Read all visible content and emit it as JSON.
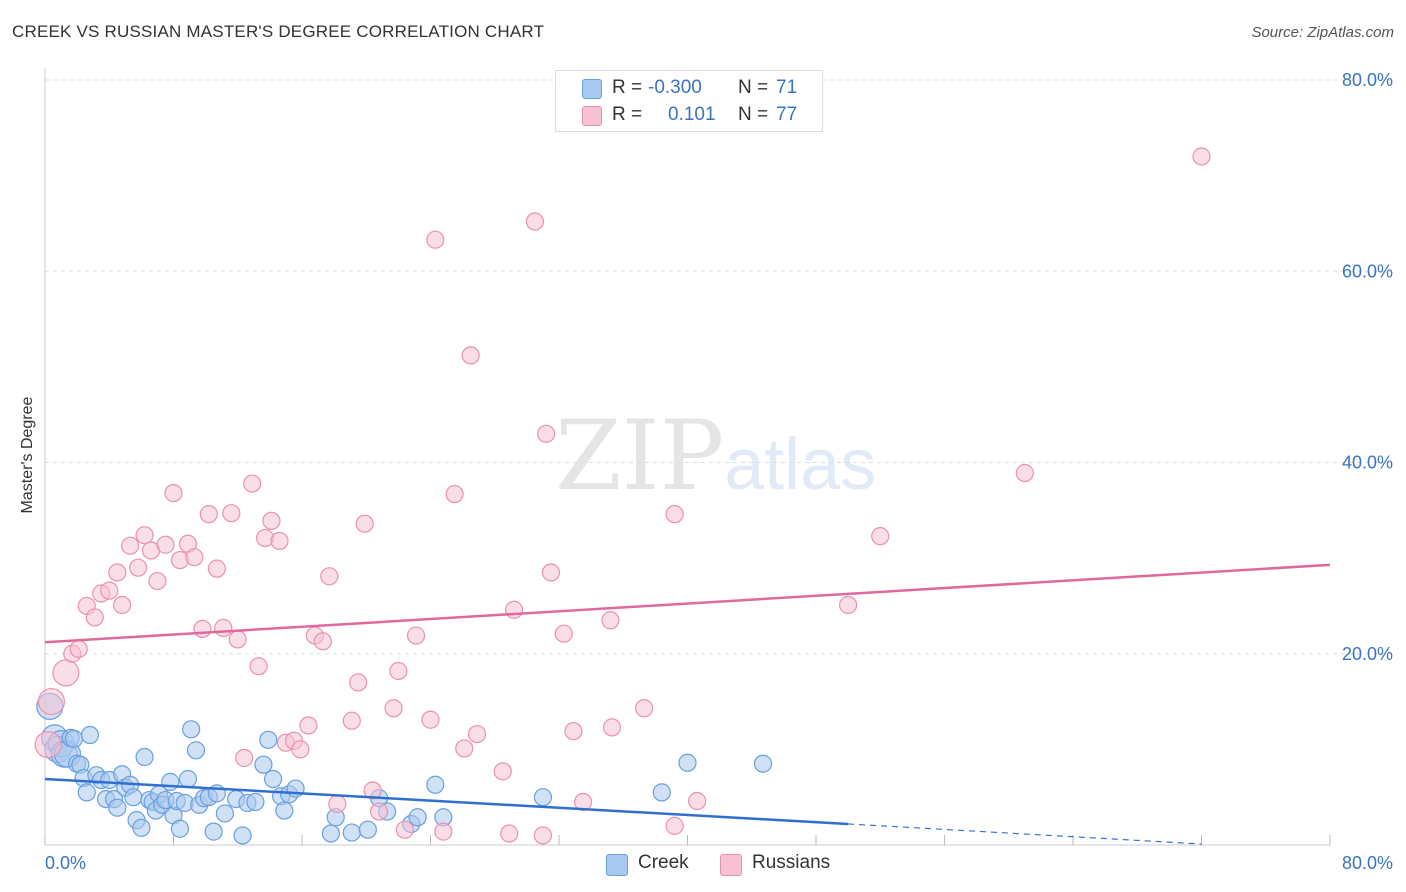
{
  "header": {
    "title": "CREEK VS RUSSIAN MASTER'S DEGREE CORRELATION CHART",
    "source": "Source: ZipAtlas.com"
  },
  "legend": {
    "r_label": "R =",
    "n_label": "N =",
    "creek": {
      "r": "-0.300",
      "n": "71"
    },
    "russians": {
      "r": "0.101",
      "n": "77"
    }
  },
  "watermark": {
    "zip": "ZIP",
    "atlas": "atlas"
  },
  "colors": {
    "creek_fill": "#a9c8ef",
    "creek_stroke": "#6a9fe0",
    "creek_line": "#2f6fcf",
    "russians_fill": "#f6c2d3",
    "russians_stroke": "#eb91ae",
    "russians_line": "#e0699a",
    "axis_text": "#3a74c4"
  },
  "chart_data": {
    "type": "scatter",
    "title": "CREEK VS RUSSIAN MASTER'S DEGREE CORRELATION CHART",
    "xlabel": "",
    "ylabel": "Master's Degree",
    "xlim": [
      0,
      80
    ],
    "ylim": [
      0,
      80
    ],
    "x_tick_labels": [
      "0.0%",
      "80.0%"
    ],
    "y_tick_labels": [
      "20.0%",
      "40.0%",
      "60.0%",
      "80.0%"
    ],
    "y_ticks": [
      20,
      40,
      60,
      80
    ],
    "grid": true,
    "legend_position": "top-center",
    "series": [
      {
        "name": "Creek",
        "r": -0.3,
        "n": 71,
        "trend": {
          "x0": 0,
          "y0": 6.9,
          "x1": 50,
          "y1": 2.2,
          "dashed_to": 72,
          "dashed_y": 0.1
        },
        "points": [
          [
            0.3,
            14.5
          ],
          [
            0.6,
            11.2
          ],
          [
            0.8,
            10.0
          ],
          [
            1.0,
            10.6
          ],
          [
            1.2,
            9.5
          ],
          [
            1.4,
            9.5
          ],
          [
            1.6,
            11.2
          ],
          [
            1.8,
            11.1
          ],
          [
            2.0,
            8.5
          ],
          [
            2.2,
            8.4
          ],
          [
            2.4,
            7.0
          ],
          [
            2.6,
            5.5
          ],
          [
            2.8,
            11.5
          ],
          [
            3.2,
            7.3
          ],
          [
            3.5,
            6.8
          ],
          [
            3.8,
            4.8
          ],
          [
            4.0,
            6.8
          ],
          [
            4.3,
            4.8
          ],
          [
            4.5,
            3.9
          ],
          [
            4.8,
            7.4
          ],
          [
            5.0,
            6.0
          ],
          [
            5.3,
            6.3
          ],
          [
            5.5,
            5.0
          ],
          [
            5.7,
            2.6
          ],
          [
            6.0,
            1.8
          ],
          [
            6.2,
            9.2
          ],
          [
            6.5,
            4.7
          ],
          [
            6.7,
            4.5
          ],
          [
            6.9,
            3.6
          ],
          [
            7.1,
            5.3
          ],
          [
            7.3,
            4.2
          ],
          [
            7.5,
            4.7
          ],
          [
            7.8,
            6.6
          ],
          [
            8.0,
            3.1
          ],
          [
            8.2,
            4.6
          ],
          [
            8.4,
            1.7
          ],
          [
            8.7,
            4.4
          ],
          [
            8.9,
            6.9
          ],
          [
            9.1,
            12.1
          ],
          [
            9.4,
            9.9
          ],
          [
            9.6,
            4.2
          ],
          [
            9.9,
            4.9
          ],
          [
            10.2,
            5.0
          ],
          [
            10.5,
            1.4
          ],
          [
            10.7,
            5.4
          ],
          [
            11.2,
            3.3
          ],
          [
            11.9,
            4.8
          ],
          [
            12.3,
            1.0
          ],
          [
            12.6,
            4.4
          ],
          [
            13.1,
            4.5
          ],
          [
            13.6,
            8.4
          ],
          [
            13.9,
            11.0
          ],
          [
            14.2,
            6.9
          ],
          [
            14.7,
            5.1
          ],
          [
            14.9,
            3.6
          ],
          [
            15.2,
            5.3
          ],
          [
            15.6,
            5.9
          ],
          [
            17.8,
            1.2
          ],
          [
            18.1,
            2.9
          ],
          [
            19.1,
            1.3
          ],
          [
            20.1,
            1.6
          ],
          [
            20.8,
            4.9
          ],
          [
            21.3,
            3.5
          ],
          [
            22.8,
            2.2
          ],
          [
            23.2,
            2.9
          ],
          [
            24.3,
            6.3
          ],
          [
            24.8,
            2.9
          ],
          [
            31.0,
            5.0
          ],
          [
            38.4,
            5.5
          ],
          [
            40.0,
            8.6
          ],
          [
            44.7,
            8.5
          ]
        ]
      },
      {
        "name": "Russians",
        "r": 0.101,
        "n": 77,
        "trend": {
          "x0": 0,
          "y0": 21.2,
          "x1": 80,
          "y1": 29.3
        },
        "points": [
          [
            0.2,
            10.5
          ],
          [
            0.4,
            15.0
          ],
          [
            1.3,
            18.0
          ],
          [
            1.7,
            20.0
          ],
          [
            2.1,
            20.5
          ],
          [
            2.6,
            25.0
          ],
          [
            3.1,
            23.8
          ],
          [
            3.5,
            26.3
          ],
          [
            4.0,
            26.6
          ],
          [
            4.5,
            28.5
          ],
          [
            4.8,
            25.1
          ],
          [
            5.3,
            31.3
          ],
          [
            5.8,
            29.0
          ],
          [
            6.2,
            32.4
          ],
          [
            6.6,
            30.8
          ],
          [
            7.0,
            27.6
          ],
          [
            7.5,
            31.4
          ],
          [
            8.0,
            36.8
          ],
          [
            8.4,
            29.8
          ],
          [
            8.9,
            31.5
          ],
          [
            9.3,
            30.1
          ],
          [
            9.8,
            22.6
          ],
          [
            10.2,
            34.6
          ],
          [
            10.7,
            28.9
          ],
          [
            11.1,
            22.7
          ],
          [
            11.6,
            34.7
          ],
          [
            12.0,
            21.5
          ],
          [
            12.4,
            9.1
          ],
          [
            12.9,
            37.8
          ],
          [
            13.3,
            18.7
          ],
          [
            13.7,
            32.1
          ],
          [
            14.1,
            33.9
          ],
          [
            14.6,
            31.8
          ],
          [
            15.0,
            10.7
          ],
          [
            15.5,
            10.9
          ],
          [
            15.9,
            10.0
          ],
          [
            16.4,
            12.5
          ],
          [
            16.8,
            21.9
          ],
          [
            17.3,
            21.3
          ],
          [
            17.7,
            28.1
          ],
          [
            18.2,
            4.3
          ],
          [
            19.1,
            13.0
          ],
          [
            19.5,
            17.0
          ],
          [
            19.9,
            33.6
          ],
          [
            20.4,
            5.7
          ],
          [
            20.8,
            3.5
          ],
          [
            21.7,
            14.3
          ],
          [
            22.0,
            18.2
          ],
          [
            22.4,
            1.6
          ],
          [
            23.1,
            21.9
          ],
          [
            24.0,
            13.1
          ],
          [
            24.3,
            63.3
          ],
          [
            24.8,
            1.4
          ],
          [
            25.5,
            36.7
          ],
          [
            26.1,
            10.1
          ],
          [
            26.5,
            51.2
          ],
          [
            26.9,
            11.6
          ],
          [
            28.5,
            7.7
          ],
          [
            28.9,
            1.2
          ],
          [
            29.2,
            24.6
          ],
          [
            30.5,
            65.2
          ],
          [
            31.0,
            1.0
          ],
          [
            31.2,
            43.0
          ],
          [
            31.5,
            28.5
          ],
          [
            32.3,
            22.1
          ],
          [
            32.9,
            11.9
          ],
          [
            33.5,
            4.5
          ],
          [
            35.2,
            23.5
          ],
          [
            35.3,
            12.3
          ],
          [
            37.3,
            14.3
          ],
          [
            39.2,
            2.0
          ],
          [
            39.2,
            34.6
          ],
          [
            40.6,
            4.6
          ],
          [
            50.0,
            25.1
          ],
          [
            52.0,
            32.3
          ],
          [
            61.0,
            38.9
          ],
          [
            72.0,
            72.0
          ]
        ]
      }
    ]
  }
}
